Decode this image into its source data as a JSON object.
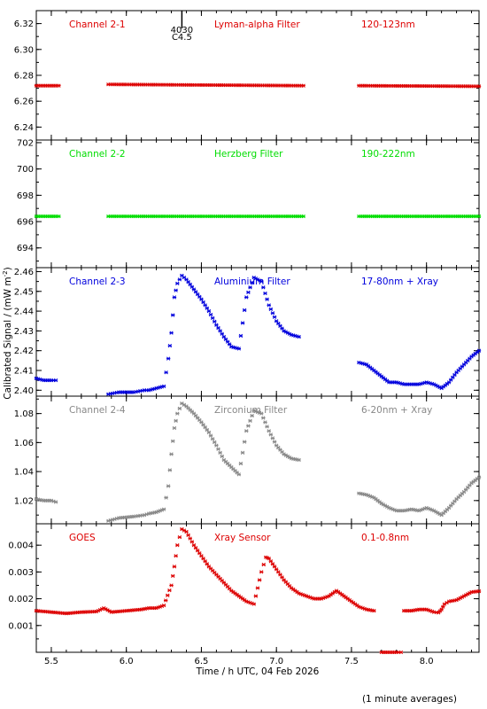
{
  "figure": {
    "ylabel": "Calibrated Signal / (mW m",
    "ylabel_sup": "-2",
    "ylabel_close": ")",
    "xlabel": "Time / h UTC, 04 Feb 2026",
    "footnote": "(1 minute averages)",
    "event_marker": {
      "x": 6.37,
      "top_label": "4030",
      "bottom_label": "C4.5"
    }
  },
  "chart_data": [
    {
      "type": "scatter",
      "name": "Channel 2-1",
      "filter": "Lyman-alpha Filter",
      "band": "120-123nm",
      "color": "#dd0000",
      "xlim": [
        5.4,
        8.35
      ],
      "ylim": [
        6.23,
        6.33
      ],
      "yticks": [
        6.24,
        6.26,
        6.28,
        6.3,
        6.32
      ],
      "ytick_labels": [
        "6.24",
        "6.26",
        "6.28",
        "6.30",
        "6.32"
      ],
      "segments": [
        {
          "x": [
            5.4,
            5.55
          ],
          "y": [
            6.272,
            6.272
          ]
        },
        {
          "x": [
            5.88,
            7.18
          ],
          "y": [
            6.273,
            6.272
          ]
        },
        {
          "x": [
            7.55,
            8.35
          ],
          "y": [
            6.272,
            6.2715
          ]
        }
      ]
    },
    {
      "type": "scatter",
      "name": "Channel 2-2",
      "filter": "Herzberg Filter",
      "band": "190-222nm",
      "color": "#00dd00",
      "xlim": [
        5.4,
        8.35
      ],
      "ylim": [
        692.5,
        702.2
      ],
      "yticks": [
        694,
        696,
        698,
        700,
        702
      ],
      "ytick_labels": [
        "694",
        "696",
        "698",
        "700",
        "702"
      ],
      "segments": [
        {
          "x": [
            5.4,
            5.55
          ],
          "y": [
            696.4,
            696.4
          ]
        },
        {
          "x": [
            5.88,
            7.18
          ],
          "y": [
            696.4,
            696.4
          ]
        },
        {
          "x": [
            7.55,
            8.35
          ],
          "y": [
            696.4,
            696.4
          ]
        }
      ]
    },
    {
      "type": "scatter",
      "name": "Channel 2-3",
      "filter": "Aluminium Filter",
      "band": "17-80nm + Xray",
      "color": "#0000dd",
      "xlim": [
        5.4,
        8.35
      ],
      "ylim": [
        2.397,
        2.462
      ],
      "yticks": [
        2.4,
        2.41,
        2.42,
        2.43,
        2.44,
        2.45,
        2.46
      ],
      "ytick_labels": [
        "2.40",
        "2.41",
        "2.42",
        "2.43",
        "2.44",
        "2.45",
        "2.46"
      ],
      "segments": [
        {
          "x": [
            5.4,
            5.45,
            5.5,
            5.53
          ],
          "y": [
            2.406,
            2.405,
            2.405,
            2.405
          ]
        },
        {
          "x": [
            5.88,
            5.95,
            6.05,
            6.12,
            6.15,
            6.2,
            6.25,
            6.28,
            6.3,
            6.32,
            6.34,
            6.37,
            6.4,
            6.45,
            6.5,
            6.55,
            6.6,
            6.65,
            6.7,
            6.75,
            6.8,
            6.85,
            6.9,
            6.95,
            7.0,
            7.05,
            7.1,
            7.15
          ],
          "y": [
            2.398,
            2.399,
            2.399,
            2.4,
            2.4,
            2.401,
            2.402,
            2.416,
            2.429,
            2.447,
            2.454,
            2.458,
            2.456,
            2.451,
            2.446,
            2.44,
            2.433,
            2.427,
            2.422,
            2.421,
            2.447,
            2.457,
            2.455,
            2.443,
            2.435,
            2.43,
            2.428,
            2.427
          ]
        },
        {
          "x": [
            7.55,
            7.6,
            7.65,
            7.7,
            7.75,
            7.8,
            7.85,
            7.9,
            7.95,
            8.0,
            8.05,
            8.1,
            8.15,
            8.2,
            8.25,
            8.3,
            8.35
          ],
          "y": [
            2.414,
            2.413,
            2.41,
            2.407,
            2.404,
            2.404,
            2.403,
            2.403,
            2.403,
            2.404,
            2.403,
            2.401,
            2.404,
            2.409,
            2.413,
            2.417,
            2.42
          ]
        }
      ]
    },
    {
      "type": "scatter",
      "name": "Channel 2-4",
      "filter": "Zirconium Filter",
      "band": "6-20nm + Xray",
      "color": "#888888",
      "xlim": [
        5.4,
        8.35
      ],
      "ylim": [
        1.004,
        1.092
      ],
      "yticks": [
        1.02,
        1.04,
        1.06,
        1.08
      ],
      "ytick_labels": [
        "1.02",
        "1.04",
        "1.06",
        "1.08"
      ],
      "segments": [
        {
          "x": [
            5.4,
            5.45,
            5.5,
            5.53
          ],
          "y": [
            1.021,
            1.02,
            1.02,
            1.019
          ]
        },
        {
          "x": [
            5.88,
            5.95,
            6.05,
            6.12,
            6.15,
            6.2,
            6.25,
            6.28,
            6.3,
            6.32,
            6.34,
            6.37,
            6.4,
            6.45,
            6.5,
            6.55,
            6.6,
            6.65,
            6.7,
            6.75,
            6.8,
            6.85,
            6.9,
            6.95,
            7.0,
            7.05,
            7.1,
            7.15
          ],
          "y": [
            1.006,
            1.008,
            1.009,
            1.01,
            1.011,
            1.012,
            1.014,
            1.03,
            1.052,
            1.07,
            1.08,
            1.087,
            1.085,
            1.08,
            1.074,
            1.067,
            1.058,
            1.048,
            1.043,
            1.038,
            1.068,
            1.082,
            1.08,
            1.068,
            1.058,
            1.052,
            1.049,
            1.048
          ]
        },
        {
          "x": [
            7.55,
            7.6,
            7.65,
            7.7,
            7.75,
            7.8,
            7.85,
            7.9,
            7.95,
            8.0,
            8.05,
            8.1,
            8.15,
            8.2,
            8.25,
            8.3,
            8.35
          ],
          "y": [
            1.025,
            1.024,
            1.022,
            1.018,
            1.015,
            1.013,
            1.013,
            1.014,
            1.013,
            1.015,
            1.013,
            1.01,
            1.015,
            1.021,
            1.026,
            1.032,
            1.036
          ]
        }
      ]
    },
    {
      "type": "scatter",
      "name": "GOES",
      "filter": "Xray Sensor",
      "band": "0.1-0.8nm",
      "color": "#dd0000",
      "xlim": [
        5.4,
        8.35
      ],
      "ylim": [
        0.0,
        0.0048
      ],
      "yticks": [
        0.001,
        0.002,
        0.003,
        0.004
      ],
      "ytick_labels": [
        "0.001",
        "0.002",
        "0.003",
        "0.004"
      ],
      "segments": [
        {
          "x": [
            5.4,
            5.5,
            5.6,
            5.7,
            5.8,
            5.85,
            5.9,
            6.0,
            6.1,
            6.15,
            6.2,
            6.25,
            6.3,
            6.32,
            6.34,
            6.37,
            6.4,
            6.45,
            6.5,
            6.55,
            6.6,
            6.65,
            6.7,
            6.75,
            6.8,
            6.85,
            6.9,
            6.93,
            6.95,
            7.0,
            7.05,
            7.1,
            7.15,
            7.2,
            7.25,
            7.3,
            7.35,
            7.4,
            7.45,
            7.5,
            7.55,
            7.6,
            7.65
          ],
          "y": [
            0.00155,
            0.0015,
            0.00145,
            0.0015,
            0.00152,
            0.00165,
            0.0015,
            0.00155,
            0.0016,
            0.00165,
            0.00165,
            0.00175,
            0.0025,
            0.0032,
            0.004,
            0.0046,
            0.0045,
            0.004,
            0.0036,
            0.0032,
            0.0029,
            0.0026,
            0.0023,
            0.0021,
            0.0019,
            0.0018,
            0.003,
            0.00355,
            0.0035,
            0.0031,
            0.0027,
            0.0024,
            0.0022,
            0.0021,
            0.002,
            0.002,
            0.0021,
            0.0023,
            0.0021,
            0.0019,
            0.0017,
            0.0016,
            0.00155
          ]
        },
        {
          "x": [
            7.7,
            7.75,
            7.8,
            7.83
          ],
          "y": [
            0.0,
            0.0,
            0.0,
            0.0
          ]
        },
        {
          "x": [
            7.85,
            7.9,
            7.95,
            8.0,
            8.05,
            8.08,
            8.1,
            8.12,
            8.15,
            8.2,
            8.25,
            8.3,
            8.35
          ],
          "y": [
            0.00155,
            0.00155,
            0.0016,
            0.0016,
            0.0015,
            0.00148,
            0.0016,
            0.0018,
            0.0019,
            0.00195,
            0.0021,
            0.00225,
            0.00228
          ]
        }
      ]
    }
  ],
  "xaxis": {
    "ticks": [
      5.5,
      6.0,
      6.5,
      7.0,
      7.5,
      8.0
    ],
    "tick_labels": [
      "5.5",
      "6.0",
      "6.5",
      "7.0",
      "7.5",
      "8.0"
    ]
  }
}
